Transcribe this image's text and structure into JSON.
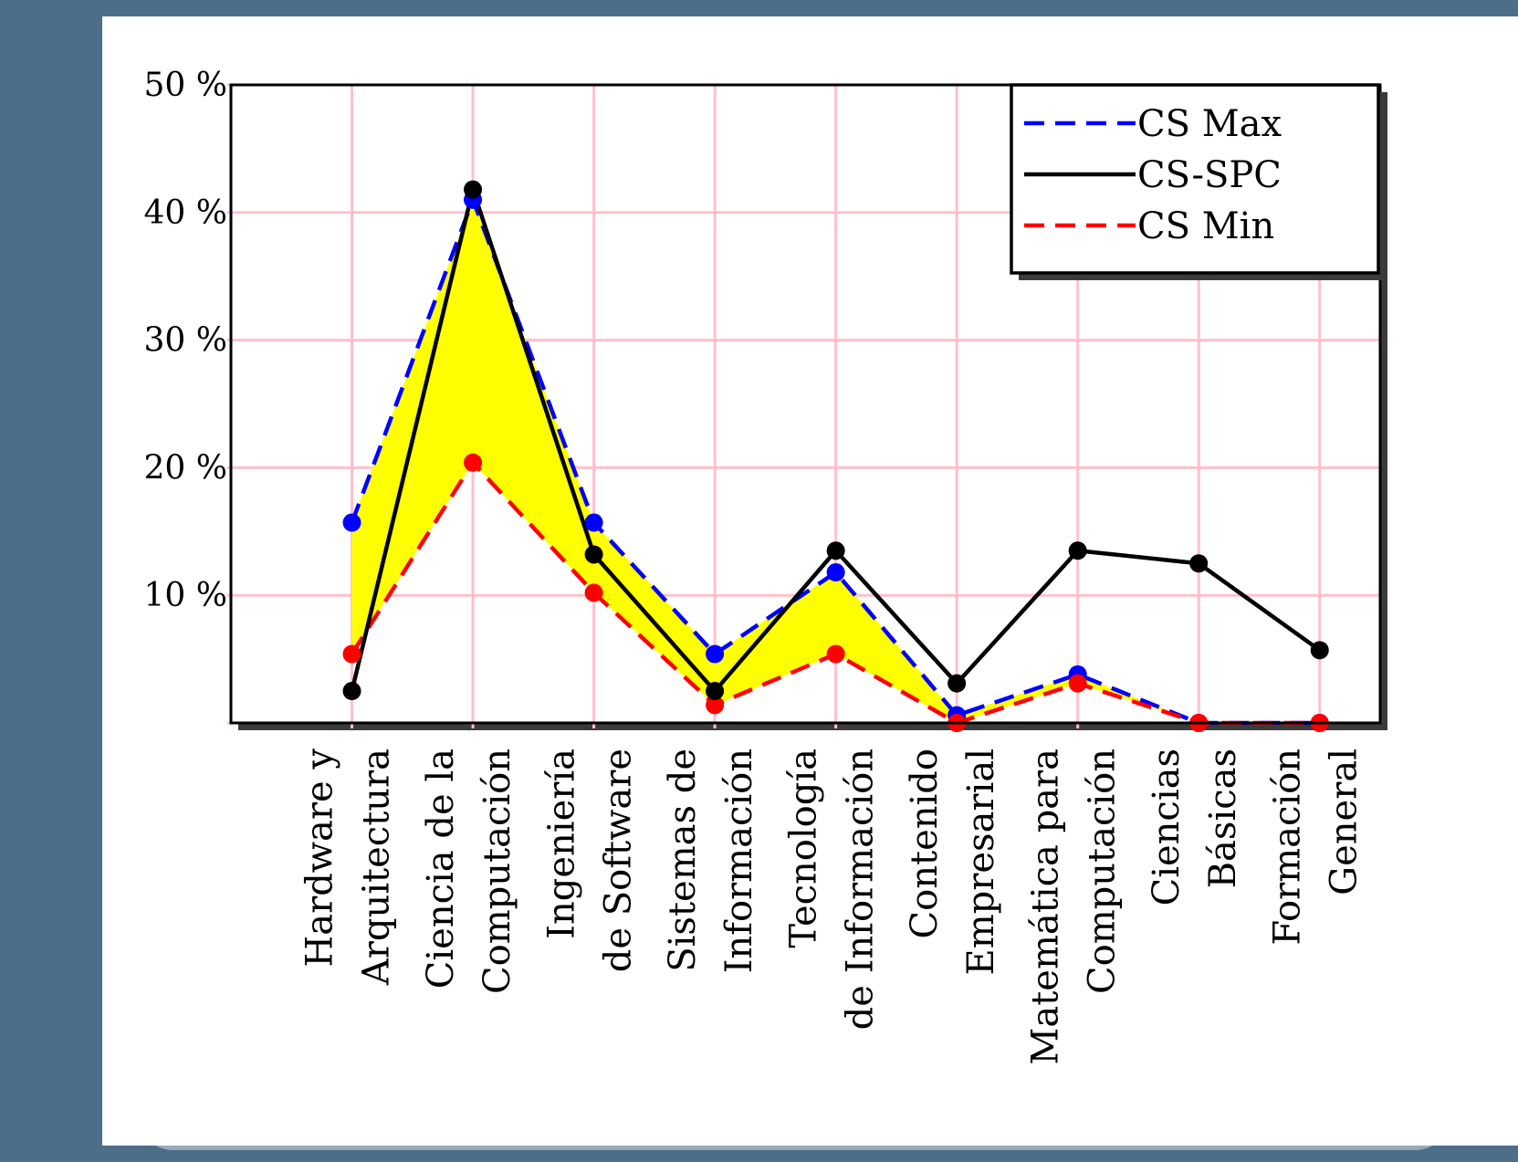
{
  "chart_data": {
    "type": "line",
    "ytick_labels": [
      "10 %",
      "20 %",
      "30 %",
      "40 %",
      "50 %"
    ],
    "ylim": [
      0,
      50
    ],
    "grid": true,
    "legend_placement": "top-right",
    "categories": [
      [
        "Hardware y",
        "Arquitectura"
      ],
      [
        "Ciencia de la",
        "Computación"
      ],
      [
        "Ingeniería",
        "de Software"
      ],
      [
        "Sistemas de",
        "Información"
      ],
      [
        "Tecnología",
        "de Información"
      ],
      [
        "Contenido",
        "Empresarial"
      ],
      [
        "Matemática para",
        "Computación"
      ],
      [
        "Ciencias",
        "Básicas"
      ],
      [
        "Formación",
        "General"
      ]
    ],
    "series": [
      {
        "name": "CS Max",
        "color": "#0000ff",
        "dash": "dashed",
        "values": [
          15.7,
          41.0,
          15.7,
          5.4,
          11.8,
          0.6,
          3.8,
          0.0,
          0.0
        ]
      },
      {
        "name": "CS-SPC",
        "color": "#000000",
        "dash": "solid",
        "values": [
          2.5,
          41.8,
          13.2,
          2.5,
          13.5,
          3.1,
          13.5,
          12.5,
          5.7
        ]
      },
      {
        "name": "CS Min",
        "color": "#ff0000",
        "dash": "dashed",
        "values": [
          5.4,
          20.4,
          10.2,
          1.4,
          5.4,
          0.0,
          3.1,
          0.0,
          0.0
        ]
      }
    ],
    "band": {
      "between": [
        "CS Min",
        "CS Max"
      ],
      "color": "#ffff00"
    },
    "colors": {
      "grid": "#ffc0cb",
      "background": "#4c6e89",
      "panel": "#ffffff"
    }
  }
}
